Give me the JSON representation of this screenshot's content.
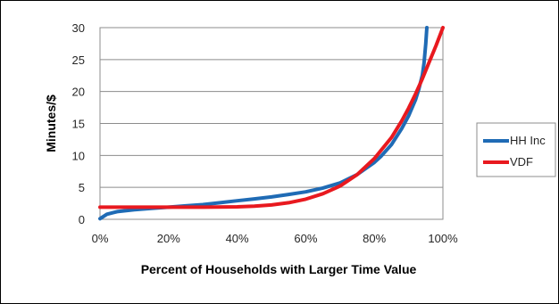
{
  "chart_data": {
    "type": "line",
    "xlabel": "Percent of Households with Larger Time Value",
    "ylabel": "Minutes/$",
    "xlim": [
      0,
      100
    ],
    "ylim": [
      0,
      30
    ],
    "x_ticks": [
      "0%",
      "20%",
      "40%",
      "60%",
      "80%",
      "100%"
    ],
    "y_ticks": [
      "0",
      "5",
      "10",
      "15",
      "20",
      "25",
      "30"
    ],
    "grid": "horizontal",
    "legend_position": "right",
    "series": [
      {
        "name": "HH Inc",
        "color": "#1f6bb5",
        "x": [
          0,
          2,
          5,
          10,
          15,
          20,
          25,
          30,
          35,
          40,
          45,
          50,
          55,
          60,
          65,
          70,
          75,
          80,
          82,
          85,
          88,
          90,
          92,
          93,
          94,
          94.5,
          95,
          95.3
        ],
        "y": [
          0.1,
          0.8,
          1.2,
          1.5,
          1.7,
          1.9,
          2.1,
          2.3,
          2.6,
          2.9,
          3.2,
          3.5,
          3.9,
          4.3,
          4.9,
          5.7,
          7.0,
          8.9,
          9.9,
          11.7,
          14.2,
          16.2,
          18.7,
          20.4,
          22.6,
          24.5,
          27.5,
          30
        ]
      },
      {
        "name": "VDF",
        "color": "#e8191f",
        "x": [
          0,
          10,
          20,
          30,
          40,
          45,
          50,
          55,
          60,
          65,
          70,
          75,
          80,
          85,
          88,
          90,
          92,
          94,
          96,
          98,
          100
        ],
        "y": [
          1.9,
          1.9,
          1.9,
          1.9,
          1.95,
          2.05,
          2.25,
          2.6,
          3.15,
          4.0,
          5.2,
          7.0,
          9.5,
          12.8,
          15.4,
          17.4,
          19.6,
          22.0,
          24.6,
          27.2,
          30
        ]
      }
    ]
  }
}
